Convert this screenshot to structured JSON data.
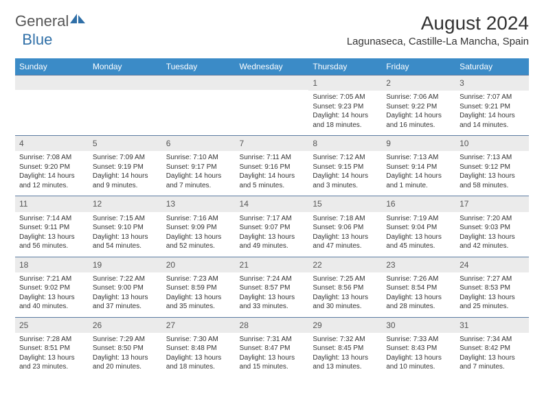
{
  "logo": {
    "text_general": "General",
    "text_blue": "Blue"
  },
  "title": "August 2024",
  "location": "Lagunaseca, Castille-La Mancha, Spain",
  "colors": {
    "header_bg": "#3b8bc7",
    "daynum_bg": "#ebebeb",
    "row_border": "#5a7aa0",
    "logo_blue": "#2f6fa7"
  },
  "weekdays": [
    "Sunday",
    "Monday",
    "Tuesday",
    "Wednesday",
    "Thursday",
    "Friday",
    "Saturday"
  ],
  "weeks": [
    [
      {
        "empty": true
      },
      {
        "empty": true
      },
      {
        "empty": true
      },
      {
        "empty": true
      },
      {
        "day": "1",
        "sunrise": "Sunrise: 7:05 AM",
        "sunset": "Sunset: 9:23 PM",
        "daylight": "Daylight: 14 hours and 18 minutes."
      },
      {
        "day": "2",
        "sunrise": "Sunrise: 7:06 AM",
        "sunset": "Sunset: 9:22 PM",
        "daylight": "Daylight: 14 hours and 16 minutes."
      },
      {
        "day": "3",
        "sunrise": "Sunrise: 7:07 AM",
        "sunset": "Sunset: 9:21 PM",
        "daylight": "Daylight: 14 hours and 14 minutes."
      }
    ],
    [
      {
        "day": "4",
        "sunrise": "Sunrise: 7:08 AM",
        "sunset": "Sunset: 9:20 PM",
        "daylight": "Daylight: 14 hours and 12 minutes."
      },
      {
        "day": "5",
        "sunrise": "Sunrise: 7:09 AM",
        "sunset": "Sunset: 9:19 PM",
        "daylight": "Daylight: 14 hours and 9 minutes."
      },
      {
        "day": "6",
        "sunrise": "Sunrise: 7:10 AM",
        "sunset": "Sunset: 9:17 PM",
        "daylight": "Daylight: 14 hours and 7 minutes."
      },
      {
        "day": "7",
        "sunrise": "Sunrise: 7:11 AM",
        "sunset": "Sunset: 9:16 PM",
        "daylight": "Daylight: 14 hours and 5 minutes."
      },
      {
        "day": "8",
        "sunrise": "Sunrise: 7:12 AM",
        "sunset": "Sunset: 9:15 PM",
        "daylight": "Daylight: 14 hours and 3 minutes."
      },
      {
        "day": "9",
        "sunrise": "Sunrise: 7:13 AM",
        "sunset": "Sunset: 9:14 PM",
        "daylight": "Daylight: 14 hours and 1 minute."
      },
      {
        "day": "10",
        "sunrise": "Sunrise: 7:13 AM",
        "sunset": "Sunset: 9:12 PM",
        "daylight": "Daylight: 13 hours and 58 minutes."
      }
    ],
    [
      {
        "day": "11",
        "sunrise": "Sunrise: 7:14 AM",
        "sunset": "Sunset: 9:11 PM",
        "daylight": "Daylight: 13 hours and 56 minutes."
      },
      {
        "day": "12",
        "sunrise": "Sunrise: 7:15 AM",
        "sunset": "Sunset: 9:10 PM",
        "daylight": "Daylight: 13 hours and 54 minutes."
      },
      {
        "day": "13",
        "sunrise": "Sunrise: 7:16 AM",
        "sunset": "Sunset: 9:09 PM",
        "daylight": "Daylight: 13 hours and 52 minutes."
      },
      {
        "day": "14",
        "sunrise": "Sunrise: 7:17 AM",
        "sunset": "Sunset: 9:07 PM",
        "daylight": "Daylight: 13 hours and 49 minutes."
      },
      {
        "day": "15",
        "sunrise": "Sunrise: 7:18 AM",
        "sunset": "Sunset: 9:06 PM",
        "daylight": "Daylight: 13 hours and 47 minutes."
      },
      {
        "day": "16",
        "sunrise": "Sunrise: 7:19 AM",
        "sunset": "Sunset: 9:04 PM",
        "daylight": "Daylight: 13 hours and 45 minutes."
      },
      {
        "day": "17",
        "sunrise": "Sunrise: 7:20 AM",
        "sunset": "Sunset: 9:03 PM",
        "daylight": "Daylight: 13 hours and 42 minutes."
      }
    ],
    [
      {
        "day": "18",
        "sunrise": "Sunrise: 7:21 AM",
        "sunset": "Sunset: 9:02 PM",
        "daylight": "Daylight: 13 hours and 40 minutes."
      },
      {
        "day": "19",
        "sunrise": "Sunrise: 7:22 AM",
        "sunset": "Sunset: 9:00 PM",
        "daylight": "Daylight: 13 hours and 37 minutes."
      },
      {
        "day": "20",
        "sunrise": "Sunrise: 7:23 AM",
        "sunset": "Sunset: 8:59 PM",
        "daylight": "Daylight: 13 hours and 35 minutes."
      },
      {
        "day": "21",
        "sunrise": "Sunrise: 7:24 AM",
        "sunset": "Sunset: 8:57 PM",
        "daylight": "Daylight: 13 hours and 33 minutes."
      },
      {
        "day": "22",
        "sunrise": "Sunrise: 7:25 AM",
        "sunset": "Sunset: 8:56 PM",
        "daylight": "Daylight: 13 hours and 30 minutes."
      },
      {
        "day": "23",
        "sunrise": "Sunrise: 7:26 AM",
        "sunset": "Sunset: 8:54 PM",
        "daylight": "Daylight: 13 hours and 28 minutes."
      },
      {
        "day": "24",
        "sunrise": "Sunrise: 7:27 AM",
        "sunset": "Sunset: 8:53 PM",
        "daylight": "Daylight: 13 hours and 25 minutes."
      }
    ],
    [
      {
        "day": "25",
        "sunrise": "Sunrise: 7:28 AM",
        "sunset": "Sunset: 8:51 PM",
        "daylight": "Daylight: 13 hours and 23 minutes."
      },
      {
        "day": "26",
        "sunrise": "Sunrise: 7:29 AM",
        "sunset": "Sunset: 8:50 PM",
        "daylight": "Daylight: 13 hours and 20 minutes."
      },
      {
        "day": "27",
        "sunrise": "Sunrise: 7:30 AM",
        "sunset": "Sunset: 8:48 PM",
        "daylight": "Daylight: 13 hours and 18 minutes."
      },
      {
        "day": "28",
        "sunrise": "Sunrise: 7:31 AM",
        "sunset": "Sunset: 8:47 PM",
        "daylight": "Daylight: 13 hours and 15 minutes."
      },
      {
        "day": "29",
        "sunrise": "Sunrise: 7:32 AM",
        "sunset": "Sunset: 8:45 PM",
        "daylight": "Daylight: 13 hours and 13 minutes."
      },
      {
        "day": "30",
        "sunrise": "Sunrise: 7:33 AM",
        "sunset": "Sunset: 8:43 PM",
        "daylight": "Daylight: 13 hours and 10 minutes."
      },
      {
        "day": "31",
        "sunrise": "Sunrise: 7:34 AM",
        "sunset": "Sunset: 8:42 PM",
        "daylight": "Daylight: 13 hours and 7 minutes."
      }
    ]
  ]
}
